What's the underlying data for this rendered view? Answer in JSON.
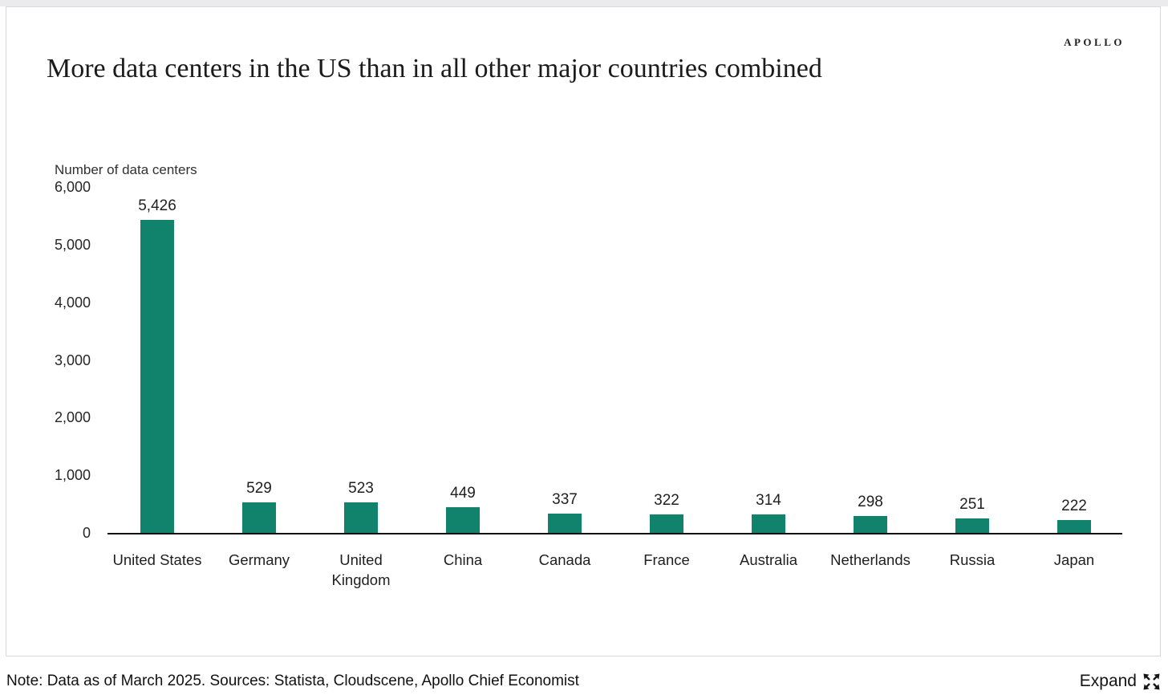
{
  "page": {
    "brand": "APOLLO"
  },
  "chart_data": {
    "type": "bar",
    "title": "More data centers in the US than in all other major countries combined",
    "ylabel": "Number of data centers",
    "xlabel": "",
    "categories": [
      "United States",
      "Germany",
      "United Kingdom",
      "China",
      "Canada",
      "France",
      "Australia",
      "Netherlands",
      "Russia",
      "Japan"
    ],
    "values": [
      5426,
      529,
      523,
      449,
      337,
      322,
      314,
      298,
      251,
      222
    ],
    "value_labels": [
      "5,426",
      "529",
      "523",
      "449",
      "337",
      "322",
      "314",
      "298",
      "251",
      "222"
    ],
    "ylim": [
      0,
      6000
    ],
    "yticks": [
      0,
      1000,
      2000,
      3000,
      4000,
      5000,
      6000
    ],
    "ytick_labels": [
      "0",
      "1,000",
      "2,000",
      "3,000",
      "4,000",
      "5,000",
      "6,000"
    ],
    "grid": false,
    "legend": false,
    "bar_color": "#11826B"
  },
  "footer": {
    "note": "Note: Data as of March 2025. Sources: Statista, Cloudscene, Apollo Chief Economist",
    "expand_label": "Expand"
  },
  "colors": {
    "bar": "#11826B",
    "axis": "#111111",
    "card_border": "#d9d9dc",
    "top_strip": "#ebebed",
    "text": "#1b1b1b"
  }
}
